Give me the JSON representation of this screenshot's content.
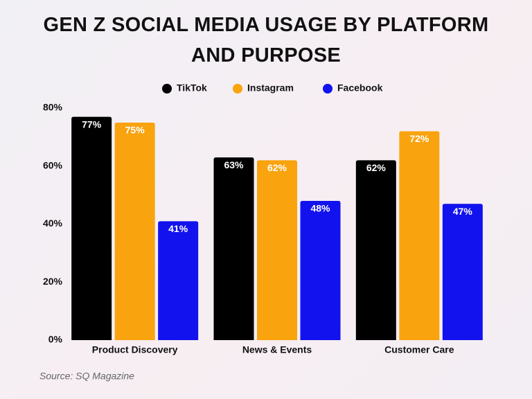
{
  "chart_data": {
    "type": "bar",
    "title": "GEN Z SOCIAL MEDIA USAGE BY PLATFORM AND PURPOSE",
    "categories": [
      "Product Discovery",
      "News & Events",
      "Customer Care"
    ],
    "series": [
      {
        "name": "TikTok",
        "color": "#000000",
        "values": [
          77,
          63,
          62
        ],
        "value_labels": [
          "77%",
          "63%",
          "62%"
        ]
      },
      {
        "name": "Instagram",
        "color": "#f9a30f",
        "values": [
          75,
          62,
          72
        ],
        "value_labels": [
          "75%",
          "62%",
          "72%"
        ]
      },
      {
        "name": "Facebook",
        "color": "#1212ee",
        "values": [
          41,
          48,
          47
        ],
        "value_labels": [
          "41%",
          "48%",
          "47%"
        ]
      }
    ],
    "ylim": [
      0,
      80
    ],
    "yticks": [
      {
        "value": 0,
        "label": "0%"
      },
      {
        "value": 20,
        "label": "20%"
      },
      {
        "value": 40,
        "label": "40%"
      },
      {
        "value": 60,
        "label": "60%"
      },
      {
        "value": 80,
        "label": "80%"
      }
    ],
    "legend": "top",
    "source": "Source: SQ Magazine"
  }
}
